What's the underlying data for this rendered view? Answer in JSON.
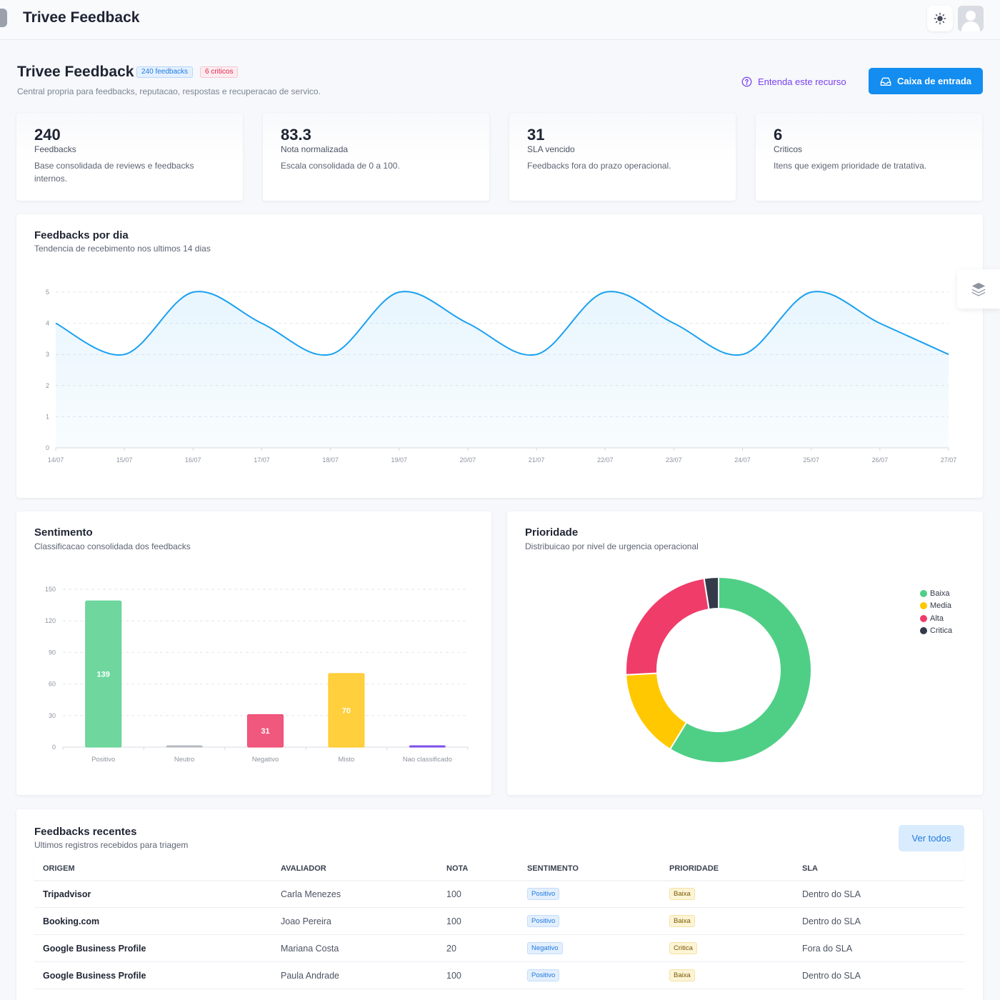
{
  "topbar": {
    "app_title": "Trivee Feedback",
    "theme_icon": "sun-icon",
    "avatar_icon": "user-icon"
  },
  "header": {
    "title": "Trivee Feedback",
    "badge_feedbacks": "240 feedbacks",
    "badge_criticos": "6 criticos",
    "subtitle": "Central propria para feedbacks, reputacao, respostas e recuperacao de servico.",
    "learn_label": "Entenda este recurso",
    "inbox_label": "Caixa de entrada"
  },
  "kpis": [
    {
      "value": "240",
      "label": "Feedbacks",
      "desc": "Base consolidada de reviews e feedbacks internos."
    },
    {
      "value": "83.3",
      "label": "Nota normalizada",
      "desc": "Escala consolidada de 0 a 100."
    },
    {
      "value": "31",
      "label": "SLA vencido",
      "desc": "Feedbacks fora do prazo operacional."
    },
    {
      "value": "6",
      "label": "Criticos",
      "desc": "Itens que exigem prioridade de tratativa."
    }
  ],
  "trend": {
    "title": "Feedbacks por dia",
    "subtitle": "Tendencia de recebimento nos ultimos 14 dias"
  },
  "sentiment": {
    "title": "Sentimento",
    "subtitle": "Classificacao consolidada dos feedbacks"
  },
  "priority": {
    "title": "Prioridade",
    "subtitle": "Distribuicao por nivel de urgencia operacional"
  },
  "chart_data": [
    {
      "type": "area",
      "categories": [
        "14/07",
        "15/07",
        "16/07",
        "17/07",
        "18/07",
        "19/07",
        "20/07",
        "21/07",
        "22/07",
        "23/07",
        "24/07",
        "25/07",
        "26/07",
        "27/07"
      ],
      "values": [
        4,
        3,
        5,
        4,
        3,
        5,
        4,
        3,
        5,
        4,
        3,
        5,
        4,
        3
      ],
      "ylim": [
        0,
        5
      ],
      "yticks": [
        "0",
        "1",
        "2",
        "3",
        "4",
        "5"
      ],
      "color": "#1aa0f0",
      "grid": true
    },
    {
      "type": "bar",
      "categories": [
        "Positivo",
        "Neutro",
        "Negativo",
        "Misto",
        "Nao classificado"
      ],
      "values": [
        139,
        0,
        31,
        70,
        0
      ],
      "data_labels": [
        "139",
        "",
        "31",
        "70",
        ""
      ],
      "colors": [
        "#5fd393",
        "#b5b9c1",
        "#f0466f",
        "#ffca28",
        "#7d4ce8"
      ],
      "ylim": [
        0,
        150
      ],
      "yticks": [
        "0",
        "30",
        "60",
        "90",
        "120",
        "150"
      ],
      "grid": true
    },
    {
      "type": "pie",
      "donut": true,
      "categories": [
        "Baixa",
        "Media",
        "Alta",
        "Critica"
      ],
      "values": [
        141,
        37,
        56,
        6
      ],
      "colors": [
        "#4fcf86",
        "#ffc800",
        "#f03c69",
        "#343a4a"
      ],
      "legend": "top-right"
    }
  ],
  "recent": {
    "title": "Feedbacks recentes",
    "subtitle": "Ultimos registros recebidos para triagem",
    "view_all": "Ver todos",
    "columns": [
      "ORIGEM",
      "AVALIADOR",
      "NOTA",
      "SENTIMENTO",
      "PRIORIDADE",
      "SLA"
    ],
    "rows": [
      {
        "origem": "Tripadvisor",
        "avaliador": "Carla Menezes",
        "nota": "100",
        "sentimento": "Positivo",
        "prioridade": "Baixa",
        "sla": "Dentro do SLA"
      },
      {
        "origem": "Booking.com",
        "avaliador": "Joao Pereira",
        "nota": "100",
        "sentimento": "Positivo",
        "prioridade": "Baixa",
        "sla": "Dentro do SLA"
      },
      {
        "origem": "Google Business Profile",
        "avaliador": "Mariana Costa",
        "nota": "20",
        "sentimento": "Negativo",
        "prioridade": "Critica",
        "sla": "Fora do SLA"
      },
      {
        "origem": "Google Business Profile",
        "avaliador": "Paula Andrade",
        "nota": "100",
        "sentimento": "Positivo",
        "prioridade": "Baixa",
        "sla": "Dentro do SLA"
      }
    ]
  }
}
